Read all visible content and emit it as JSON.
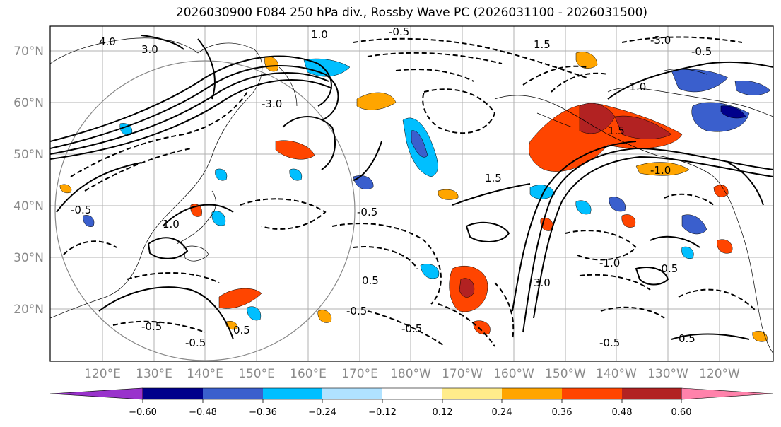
{
  "title": "2026030900 F084 250 hPa div., Rossby Wave PC (2026031100 - 2026031500)",
  "lat_labels": [
    "70°N",
    "60°N",
    "50°N",
    "40°N",
    "30°N",
    "20°N"
  ],
  "lon_labels": [
    "120°E",
    "130°E",
    "140°E",
    "150°E",
    "160°E",
    "170°E",
    "180°W",
    "170°W",
    "160°W",
    "150°W",
    "140°W",
    "130°W",
    "120°W"
  ],
  "colorbar": {
    "ticks": [
      "−0.60",
      "−0.48",
      "−0.36",
      "−0.24",
      "−0.12",
      "0.12",
      "0.24",
      "0.36",
      "0.48",
      "0.60"
    ],
    "colors": [
      "#9932cc",
      "#00008b",
      "#3a5fcd",
      "#00bfff",
      "#b0e2ff",
      "#ffffff",
      "#ffec8b",
      "#ffa500",
      "#ff4500",
      "#b22222",
      "#ff82ab"
    ]
  },
  "contour_labels": [
    "-0.5",
    "1.0",
    "-3.0",
    "-0.5",
    "4.0",
    "3.0",
    "1.5",
    "-3.0",
    "-1.0",
    "1.5",
    "-1.0",
    "1.5",
    "-0.5",
    "3.0",
    "1.0",
    "-0.5",
    "0.5",
    "-0.5",
    "-1.0",
    "-0.5",
    "0.5",
    "-0.5",
    "-0.5",
    "-0.5",
    "-0.5",
    "0.5"
  ]
}
